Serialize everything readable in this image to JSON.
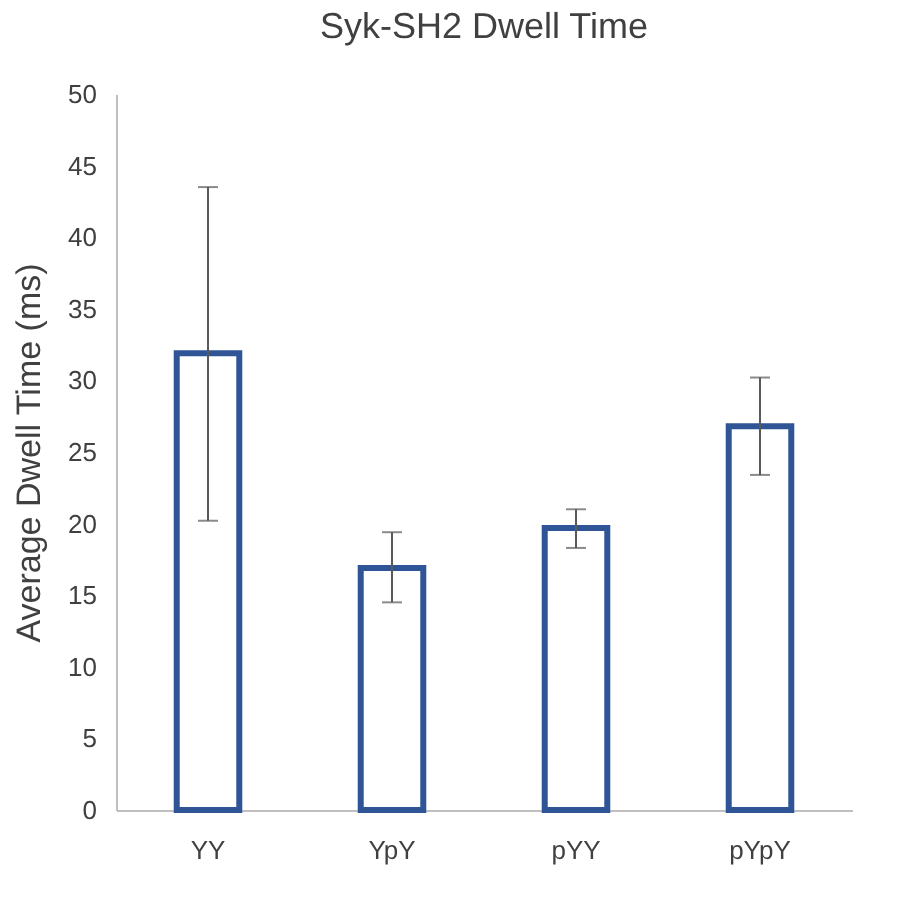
{
  "chart_data": {
    "type": "bar",
    "title": "Syk-SH2 Dwell Time",
    "ylabel": "Average Dwell Time (ms)",
    "categories": [
      "YY",
      "YpY",
      "pYY",
      "pYpY"
    ],
    "series": [
      {
        "color": "#2f5597",
        "values": [
          31.9,
          16.9,
          19.7,
          26.8
        ],
        "errors": [
          [
            20.2,
            43.5
          ],
          [
            14.5,
            19.4
          ],
          [
            18.3,
            21.0
          ],
          [
            23.4,
            30.2
          ]
        ]
      }
    ],
    "ylim": [
      0,
      50
    ],
    "yticks": [
      0,
      5,
      10,
      15,
      20,
      25,
      30,
      35,
      40,
      45,
      50
    ],
    "grid": false
  }
}
